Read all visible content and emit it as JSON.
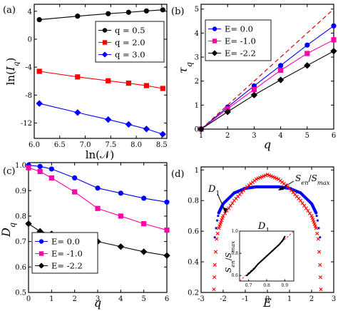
{
  "figure": {
    "panels": [
      "(a)",
      "(b)",
      "(c)",
      "(d)"
    ]
  },
  "chart_data": [
    {
      "panel": "(a)",
      "type": "line",
      "xlabel": "ln(𝒩)",
      "ylabel": "ln(I_q)",
      "xlim": [
        6.0,
        8.6
      ],
      "ylim": [
        -14.2,
        5
      ],
      "xticks": [
        6.0,
        6.5,
        7.0,
        7.5,
        8.0,
        8.5
      ],
      "yticks": [
        4,
        0,
        -4,
        -8,
        -12
      ],
      "xtick_labels": [
        "6.0",
        "6.5",
        "7.0",
        "7.5",
        "8.0",
        "8.5"
      ],
      "ytick_labels": [
        "4",
        "0",
        "-4",
        "-8",
        "-12"
      ],
      "legend_position": "top-right",
      "series": [
        {
          "name": "q = 0.5",
          "color": "#000000",
          "marker": "circle",
          "x": [
            6.1,
            6.85,
            7.45,
            7.85,
            8.2,
            8.52
          ],
          "y": [
            2.8,
            3.3,
            3.65,
            3.85,
            4.05,
            4.2
          ]
        },
        {
          "name": "q = 2.0",
          "color": "#ff0000",
          "marker": "square",
          "x": [
            6.1,
            6.85,
            7.45,
            7.85,
            8.2,
            8.52
          ],
          "y": [
            -4.6,
            -5.4,
            -5.95,
            -6.3,
            -6.65,
            -7.05
          ]
        },
        {
          "name": "q = 3.0",
          "color": "#0000ff",
          "marker": "diamond",
          "x": [
            6.1,
            6.85,
            7.45,
            7.85,
            8.2,
            8.52
          ],
          "y": [
            -9.2,
            -10.5,
            -11.5,
            -12.2,
            -12.85,
            -13.6
          ]
        }
      ]
    },
    {
      "panel": "(b)",
      "type": "line",
      "xlabel": "q",
      "ylabel": "τ_q",
      "xlim": [
        1,
        6
      ],
      "ylim": [
        0,
        5.2
      ],
      "xticks": [
        1,
        2,
        3,
        4,
        5,
        6
      ],
      "yticks": [
        0,
        1,
        2,
        3,
        4,
        5
      ],
      "xtick_labels": [
        "1",
        "2",
        "3",
        "4",
        "5",
        "6"
      ],
      "ytick_labels": [
        "0",
        "1",
        "2",
        "3",
        "4",
        "5"
      ],
      "legend_position": "top-left",
      "reference_line": {
        "x": [
          1,
          6
        ],
        "y": [
          0,
          5
        ],
        "color": "#dd0000",
        "style": "dashed"
      },
      "series": [
        {
          "name": "E= 0.0",
          "color": "#0000ff",
          "marker": "circle",
          "x": [
            1,
            2,
            3,
            4,
            5,
            6
          ],
          "y": [
            0,
            0.92,
            1.8,
            2.65,
            3.5,
            4.3
          ]
        },
        {
          "name": "E= -1.0",
          "color": "#ff00aa",
          "marker": "square",
          "x": [
            1,
            2,
            3,
            4,
            5,
            6
          ],
          "y": [
            0,
            0.85,
            1.65,
            2.45,
            3.15,
            3.72
          ]
        },
        {
          "name": "E= -2.2",
          "color": "#000000",
          "marker": "diamond",
          "x": [
            1,
            2,
            3,
            4,
            5,
            6
          ],
          "y": [
            0,
            0.72,
            1.42,
            2.05,
            2.65,
            3.25
          ]
        }
      ]
    },
    {
      "panel": "(c)",
      "type": "line",
      "xlabel": "q",
      "ylabel": "D_q",
      "xlim": [
        0,
        6
      ],
      "ylim": [
        0.5,
        1.01
      ],
      "xticks": [
        0,
        1,
        2,
        3,
        4,
        5,
        6
      ],
      "yticks": [
        0.5,
        0.6,
        0.7,
        0.8,
        0.9,
        1.0
      ],
      "xtick_labels": [
        "0",
        "1",
        "2",
        "3",
        "4",
        "5",
        "6"
      ],
      "ytick_labels": [
        "0.5",
        "0.6",
        "0.7",
        "0.8",
        "0.9",
        "1.0"
      ],
      "legend_position": "bottom-left",
      "series": [
        {
          "name": "E= 0.0",
          "color": "#0000ff",
          "marker": "circle",
          "x": [
            0,
            0.5,
            1,
            2,
            3,
            4,
            5,
            6
          ],
          "y": [
            1.0,
            0.995,
            0.985,
            0.95,
            0.91,
            0.89,
            0.87,
            0.855
          ]
        },
        {
          "name": "E= -1.0",
          "color": "#ff00aa",
          "marker": "square",
          "x": [
            0,
            0.5,
            1,
            2,
            3,
            4,
            5,
            6
          ],
          "y": [
            0.99,
            0.975,
            0.95,
            0.895,
            0.83,
            0.8,
            0.77,
            0.745
          ]
        },
        {
          "name": "E= -2.2",
          "color": "#000000",
          "marker": "diamond",
          "x": [
            0,
            0.5,
            1,
            2,
            3,
            4,
            5,
            6
          ],
          "y": [
            0.77,
            0.74,
            0.73,
            0.715,
            0.7,
            0.68,
            0.66,
            0.645
          ]
        }
      ]
    },
    {
      "panel": "(d)",
      "type": "scatter",
      "xlabel": "E",
      "ylabel": "",
      "xlim": [
        -3,
        3
      ],
      "ylim": [
        0.2,
        1.02
      ],
      "xticks": [
        -3,
        -2,
        -1,
        0,
        1,
        2,
        3
      ],
      "yticks": [
        0.2,
        0.4,
        0.6,
        0.8,
        1.0
      ],
      "xtick_labels": [
        "-3",
        "-2",
        "-1",
        "0",
        "1",
        "2",
        "3"
      ],
      "ytick_labels": [
        "0.2",
        "0.4",
        "0.6",
        "0.8",
        "1"
      ],
      "annotations": [
        "D_1",
        "S_en/S_max",
        "D_1"
      ],
      "series": [
        {
          "name": "D_1",
          "color": "#0000ff",
          "marker": "dot",
          "edge_x": [
            -2.38,
            -2.32,
            -2.27,
            -2.23
          ],
          "edge_y": [
            0.56,
            0.62,
            0.67,
            0.7
          ],
          "x": [
            -2.2,
            -2.0,
            -1.5,
            -1.0,
            -0.5,
            0,
            0.5,
            1.0,
            1.5,
            2.0,
            2.2
          ],
          "y": [
            0.72,
            0.78,
            0.85,
            0.88,
            0.89,
            0.89,
            0.89,
            0.88,
            0.85,
            0.78,
            0.72
          ]
        },
        {
          "name": "S_en/S_max",
          "color": "#ff0000",
          "marker": "x",
          "x": [
            -2.42,
            -2.38,
            -2.3,
            -2.2,
            -2.0,
            -1.5,
            -1.0,
            -0.5,
            0,
            0.5,
            1.0,
            1.5,
            2.0,
            2.2,
            2.3,
            2.38,
            2.42
          ],
          "y": [
            0.22,
            0.38,
            0.55,
            0.62,
            0.7,
            0.8,
            0.88,
            0.94,
            0.97,
            0.94,
            0.88,
            0.8,
            0.7,
            0.62,
            0.55,
            0.38,
            0.22
          ]
        }
      ],
      "inset": {
        "xlabel": "D_1",
        "ylabel": "S_en/S_max",
        "xlim": [
          0.65,
          0.95
        ],
        "ylim": [
          0.55,
          1.0
        ],
        "xticks": [
          0.7,
          0.8,
          0.9
        ],
        "yticks": [
          0.6,
          0.8,
          1.0
        ],
        "xtick_labels": [
          "0.7",
          "0.8",
          "0.9"
        ],
        "ytick_labels": [
          "0.6",
          "0.8",
          "1.0"
        ],
        "reference_line": {
          "x": [
            0.65,
            0.95
          ],
          "y": [
            0.55,
            1.0
          ],
          "color": "#dd0000",
          "style": "dashed"
        },
        "series": [
          {
            "name": "",
            "color": "#000000",
            "marker": "dot",
            "x": [
              0.69,
              0.71,
              0.73,
              0.75,
              0.77,
              0.79,
              0.81,
              0.83,
              0.85,
              0.87,
              0.89,
              0.9
            ],
            "y": [
              0.6,
              0.63,
              0.66,
              0.7,
              0.73,
              0.76,
              0.79,
              0.82,
              0.85,
              0.88,
              0.92,
              0.95
            ]
          }
        ]
      }
    }
  ]
}
